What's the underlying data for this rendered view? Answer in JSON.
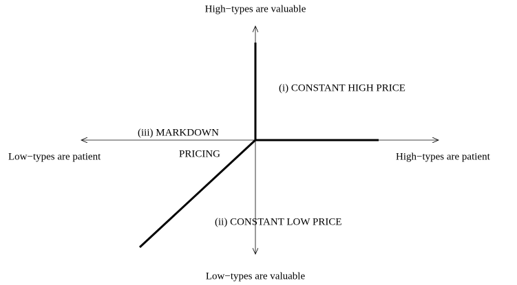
{
  "axes": {
    "top": "High−types are valuable",
    "bottom": "Low−types are valuable",
    "left": "Low−types are patient",
    "right": "High−types are patient"
  },
  "regions": {
    "i": "(i) CONSTANT HIGH PRICE",
    "ii": "(ii) CONSTANT LOW PRICE",
    "iii": [
      "(iii) MARKDOWN",
      "PRICING"
    ]
  }
}
